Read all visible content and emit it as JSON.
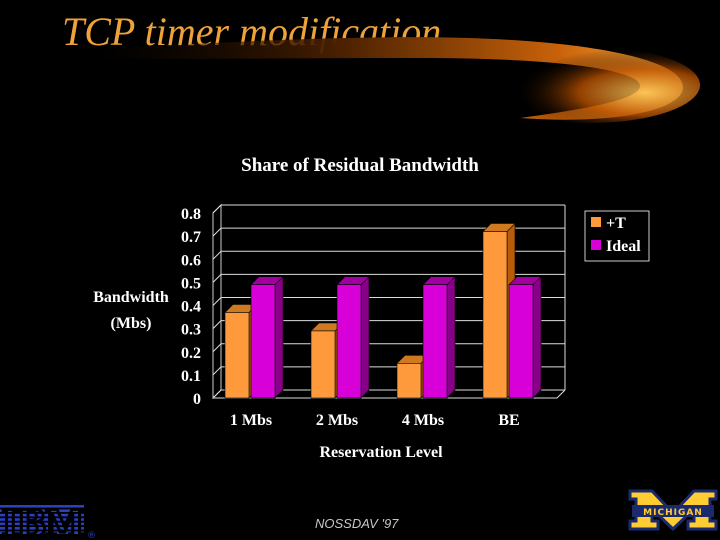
{
  "slide": {
    "title": "TCP timer modification",
    "footer": "NOSSDAV '97",
    "logos": [
      {
        "name": "ibm-logo",
        "text": "IBM"
      },
      {
        "name": "michigan-logo",
        "text": "MICHIGAN"
      }
    ]
  },
  "colors": {
    "title": "#f0a23a",
    "series_T": "#ff9a3c",
    "series_Ideal": "#d800d8",
    "text": "#ffffff",
    "axis": "#ffffff"
  },
  "chart_data": {
    "type": "bar",
    "title": "Share of Residual Bandwidth",
    "xlabel": "Reservation Level",
    "ylabel": "Bandwidth (Mbs)",
    "categories": [
      "1 Mbs",
      "2 Mbs",
      "4 Mbs",
      "BE"
    ],
    "yticks": [
      "0",
      "0.1",
      "0.2",
      "0.3",
      "0.4",
      "0.5",
      "0.6",
      "0.7",
      "0.8"
    ],
    "ylim": [
      0,
      0.8
    ],
    "grid": true,
    "legend": "top-right",
    "series": [
      {
        "name": "+T",
        "values": [
          0.37,
          0.29,
          0.15,
          0.72
        ]
      },
      {
        "name": "Ideal",
        "values": [
          0.49,
          0.49,
          0.49,
          0.49
        ]
      }
    ]
  }
}
